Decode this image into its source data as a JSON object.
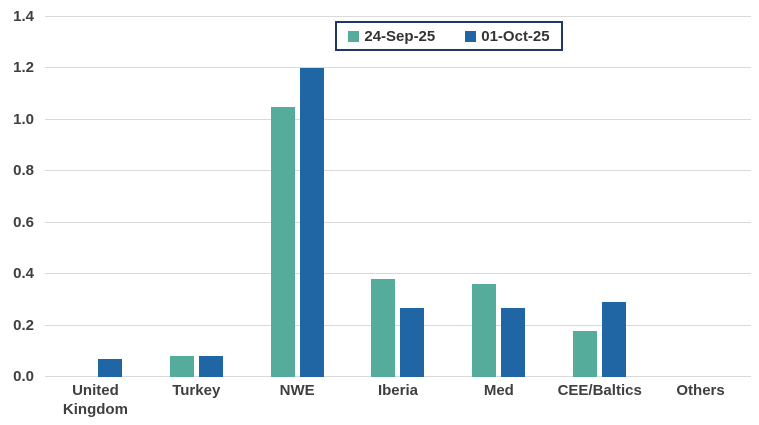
{
  "chart_data": {
    "type": "bar",
    "title": "",
    "xlabel": "",
    "ylabel": "",
    "categories": [
      "United Kingdom",
      "Turkey",
      "NWE",
      "Iberia",
      "Med",
      "CEE/Baltics",
      "Others"
    ],
    "series": [
      {
        "name": "24-Sep-25",
        "color": "#56AC9A",
        "values": [
          0,
          0.08,
          1.05,
          0.38,
          0.36,
          0.18,
          0
        ]
      },
      {
        "name": "01-Oct-25",
        "color": "#2066A5",
        "values": [
          0.07,
          0.08,
          1.2,
          0.27,
          0.27,
          0.29,
          0
        ]
      }
    ],
    "ylim": [
      0,
      1.4
    ],
    "ytick_step": 0.2,
    "ytick_labels": [
      "0.0",
      "0.2",
      "0.4",
      "0.6",
      "0.8",
      "1.0",
      "1.2",
      "1.4"
    ],
    "grid": true,
    "legend_position": "top-center"
  },
  "colors": {
    "gridline": "#d9d9d9",
    "axis_text": "#3f3f3f",
    "legend_border": "#1f3864",
    "background": "#ffffff"
  }
}
